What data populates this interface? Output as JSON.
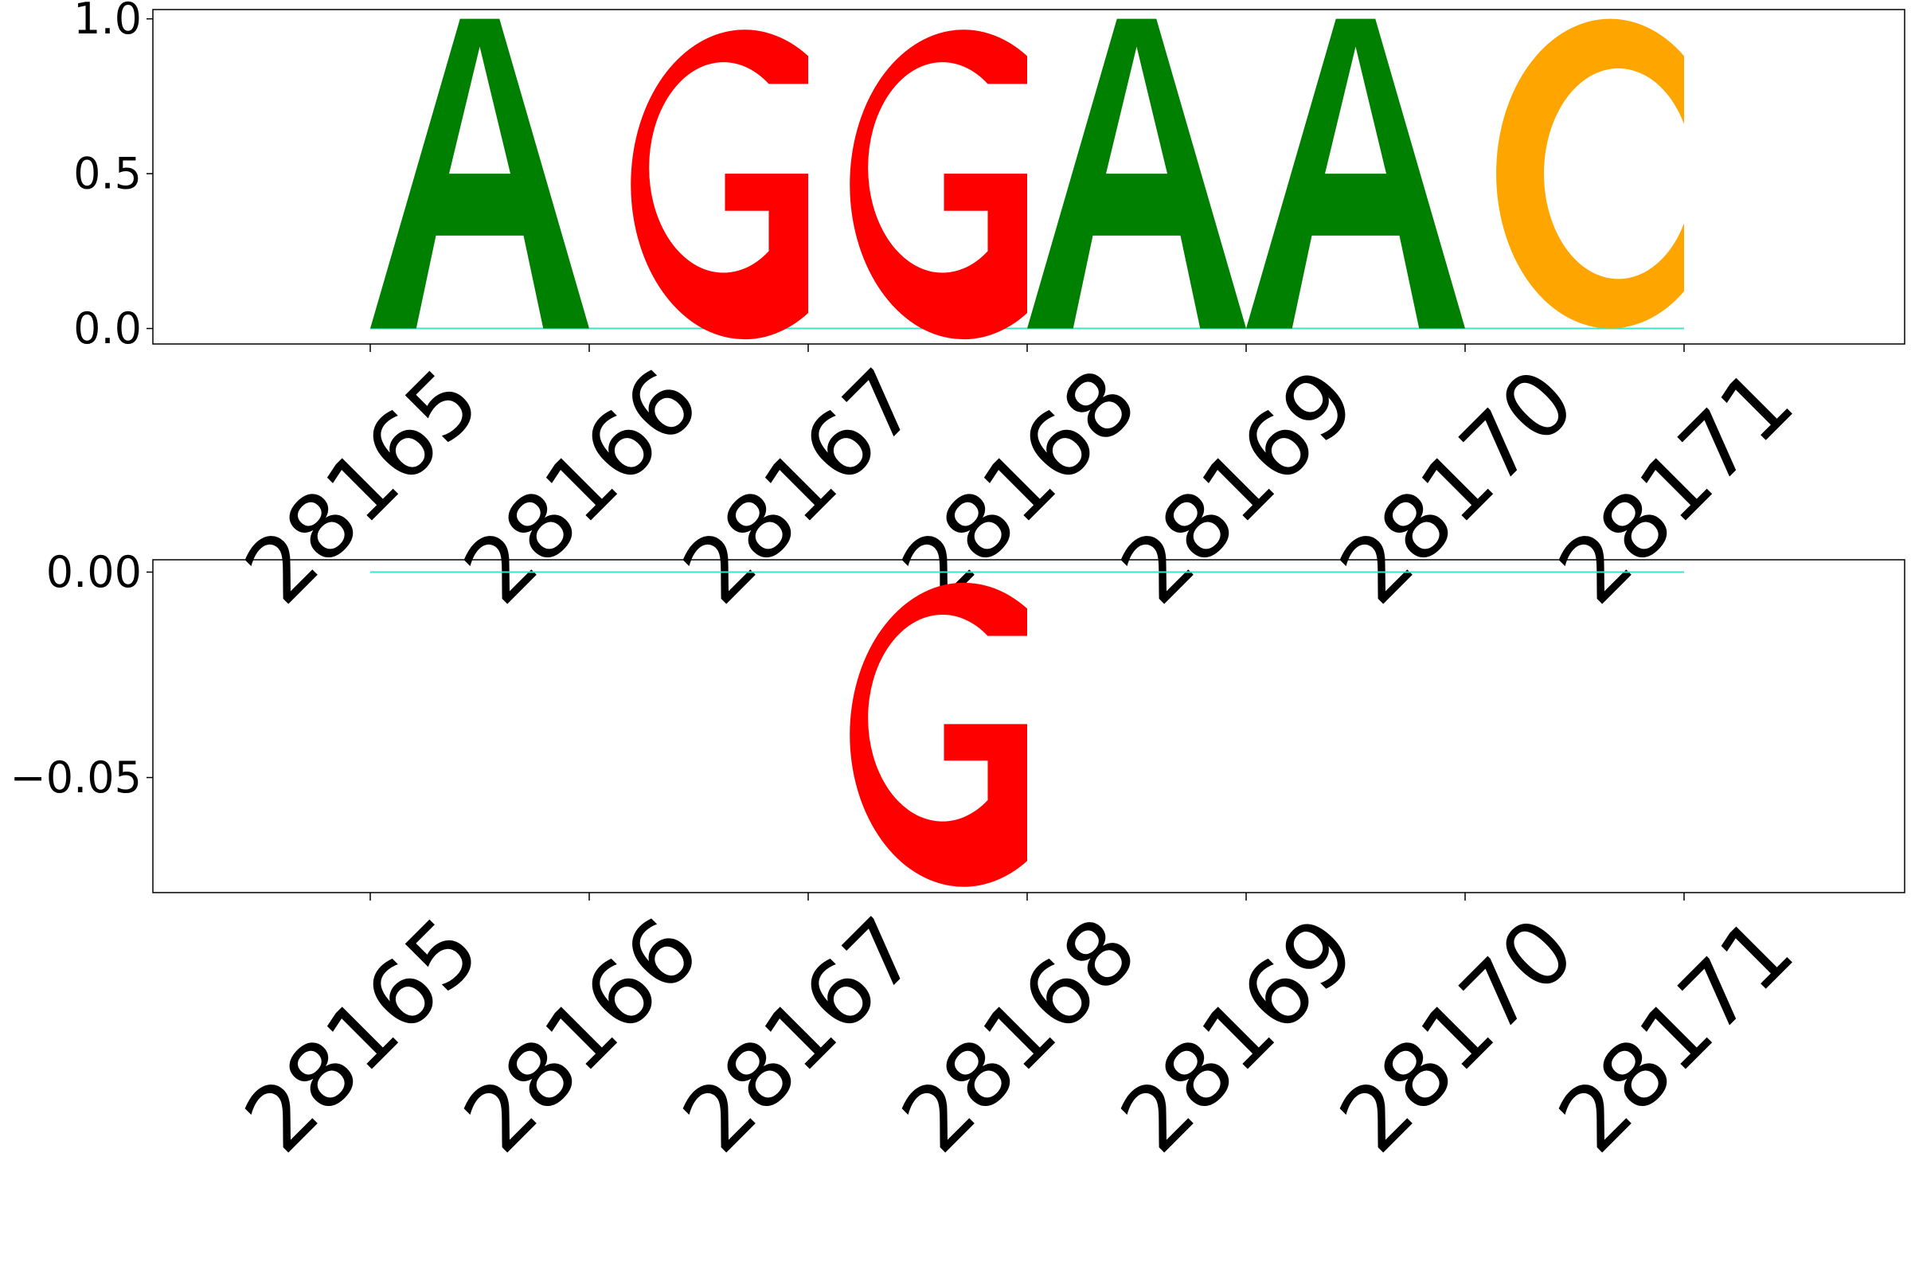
{
  "chart_data": [
    {
      "type": "sequence-logo",
      "panel": "top",
      "x_ticks": [
        "28165",
        "28166",
        "28167",
        "28168",
        "28169",
        "28170",
        "28171"
      ],
      "y_ticks": [
        "1.0",
        "0.5",
        "0.0"
      ],
      "ylim": [
        -0.05,
        1.03
      ],
      "letters": [
        {
          "letter": "A",
          "x": 28165,
          "value": 1.0,
          "color": "#008000"
        },
        {
          "letter": "G",
          "x": 28166,
          "value": 1.0,
          "color": "#ff0000"
        },
        {
          "letter": "G",
          "x": 28167,
          "value": 1.0,
          "color": "#ff0000"
        },
        {
          "letter": "A",
          "x": 28168,
          "value": 1.0,
          "color": "#008000"
        },
        {
          "letter": "A",
          "x": 28169,
          "value": 1.0,
          "color": "#008000"
        },
        {
          "letter": "C",
          "x": 28170,
          "value": 1.0,
          "color": "#ffa500"
        }
      ],
      "baseline_color": "#40e0d0",
      "grid": false,
      "legend": "none"
    },
    {
      "type": "sequence-logo",
      "panel": "bottom",
      "x_ticks": [
        "28165",
        "28166",
        "28167",
        "28168",
        "28169",
        "28170",
        "28171"
      ],
      "y_ticks": [
        "0.00",
        "−0.05"
      ],
      "ylim": [
        -0.078,
        0.003
      ],
      "letters": [
        {
          "letter": "G",
          "x": 28167,
          "value": -0.074,
          "color": "#ff0000"
        }
      ],
      "baseline_color": "#40e0d0",
      "grid": false,
      "legend": "none"
    }
  ]
}
